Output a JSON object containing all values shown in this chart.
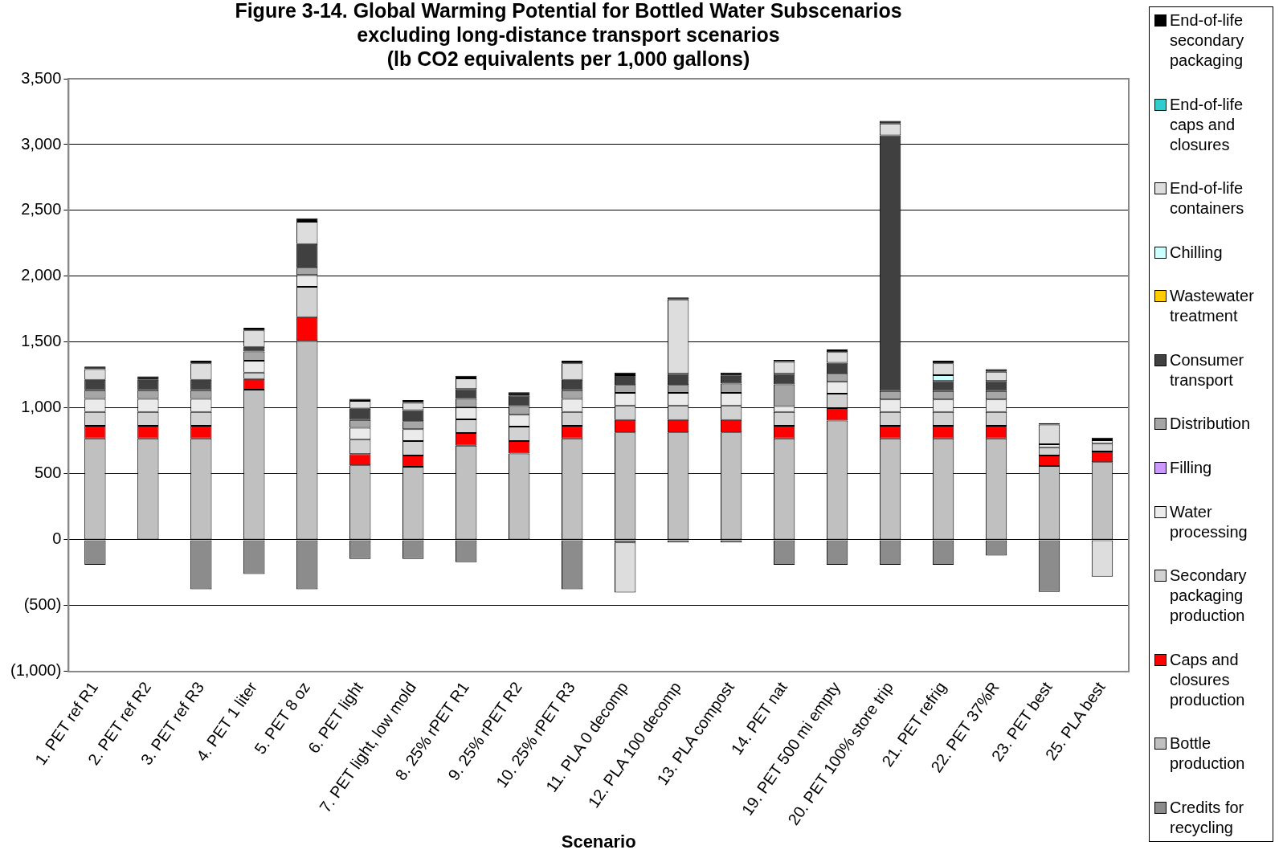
{
  "chart_data": {
    "type": "bar",
    "stacked": true,
    "title": "Figure 3-14. Global Warming Potential for Bottled Water Subscenarios\nexcluding long-distance transport scenarios\n(lb CO2 equivalents per 1,000 gallons)",
    "xlabel": "Scenario",
    "categories": [
      "1. PET ref R1",
      "2. PET ref R2",
      "3. PET ref R3",
      "4. PET 1 liter",
      "5. PET 8 oz",
      "6. PET light",
      "7. PET light, low mold",
      "8. 25% rPET R1",
      "9. 25% rPET R2",
      "10. 25% rPET R3",
      "11. PLA 0 decomp",
      "12. PLA 100 decomp",
      "13. PLA compost",
      "14. PET nat",
      "19. PET 500 mi empty",
      "20. PET 100% store trip",
      "21. PET refrig",
      "22. PET 37%R",
      "23. PET best",
      "25. PLA best"
    ],
    "series": [
      {
        "name": "Credits for recycling",
        "color": "#8c8c8c",
        "values": [
          -190,
          null,
          -375,
          -260,
          -375,
          -145,
          -145,
          -170,
          null,
          -375,
          -20,
          -20,
          -20,
          -190,
          -190,
          -190,
          -190,
          -120,
          -395,
          null
        ]
      },
      {
        "name": "Bottle production",
        "color": "#c0c0c0",
        "values": [
          770,
          770,
          770,
          1140,
          1510,
          565,
          555,
          715,
          655,
          770,
          815,
          815,
          815,
          770,
          905,
          770,
          770,
          770,
          560,
          590
        ]
      },
      {
        "name": "Caps and closures production",
        "color": "#ff0000",
        "values": [
          95,
          95,
          95,
          80,
          180,
          85,
          85,
          95,
          95,
          95,
          95,
          95,
          95,
          95,
          95,
          95,
          95,
          95,
          80,
          80
        ]
      },
      {
        "name": "Secondary packaging production",
        "color": "#d2d2d2",
        "values": [
          105,
          105,
          105,
          50,
          230,
          110,
          110,
          105,
          110,
          105,
          110,
          110,
          110,
          105,
          110,
          105,
          105,
          105,
          60,
          60
        ]
      },
      {
        "name": "Water processing",
        "color": "#ebebeb",
        "values": [
          100,
          100,
          100,
          90,
          90,
          90,
          90,
          90,
          90,
          100,
          95,
          95,
          95,
          45,
          90,
          95,
          95,
          95,
          25,
          25
        ]
      },
      {
        "name": "Filling",
        "color": "#cc99ff",
        "values": [
          null,
          null,
          null,
          null,
          null,
          null,
          null,
          null,
          null,
          null,
          null,
          null,
          null,
          null,
          null,
          null,
          null,
          null,
          null,
          null
        ]
      },
      {
        "name": "Distribution",
        "color": "#a6a6a6",
        "values": [
          65,
          65,
          65,
          70,
          55,
          60,
          60,
          65,
          65,
          65,
          60,
          60,
          70,
          165,
          60,
          65,
          65,
          65,
          null,
          null
        ]
      },
      {
        "name": "Consumer transport",
        "color": "#404040",
        "values": [
          80,
          80,
          80,
          35,
          180,
          85,
          85,
          75,
          80,
          80,
          75,
          85,
          60,
          80,
          85,
          1940,
          75,
          75,
          null,
          null
        ]
      },
      {
        "name": "Wastewater treatment",
        "color": "#ffcc00",
        "values": [
          null,
          null,
          null,
          null,
          null,
          null,
          null,
          null,
          null,
          null,
          null,
          null,
          null,
          null,
          null,
          null,
          null,
          null,
          null,
          null
        ]
      },
      {
        "name": "Chilling",
        "color": "#ccffff",
        "values": [
          null,
          null,
          null,
          null,
          null,
          null,
          null,
          null,
          null,
          null,
          null,
          null,
          null,
          null,
          null,
          null,
          45,
          null,
          null,
          null
        ]
      },
      {
        "name": "End-of-life containers",
        "color": "#dddddd",
        "values": [
          80,
          null,
          125,
          125,
          170,
          60,
          55,
          80,
          null,
          125,
          -380,
          565,
          null,
          90,
          80,
          90,
          90,
          70,
          150,
          -280
        ]
      },
      {
        "name": "End-of-life caps and closures",
        "color": "#33cccc",
        "values": [
          null,
          null,
          null,
          null,
          null,
          null,
          null,
          null,
          null,
          null,
          null,
          null,
          null,
          null,
          null,
          null,
          null,
          null,
          null,
          null
        ]
      },
      {
        "name": "End-of-life secondary packaging",
        "color": "#000000",
        "values": [
          20,
          25,
          20,
          20,
          25,
          15,
          20,
          20,
          25,
          20,
          20,
          15,
          25,
          15,
          20,
          20,
          20,
          20,
          10,
          20
        ]
      }
    ],
    "ylim": [
      -1000,
      3500
    ],
    "yticks": [
      {
        "value": -1000,
        "label": "(1,000)"
      },
      {
        "value": -500,
        "label": "(500)"
      },
      0,
      {
        "value": 500,
        "label": "500"
      },
      {
        "value": 1000,
        "label": "1,000"
      },
      {
        "value": 1500,
        "label": "1,500"
      },
      {
        "value": 2000,
        "label": "2,000"
      },
      {
        "value": 2500,
        "label": "2,500"
      },
      {
        "value": 3000,
        "label": "3,000"
      },
      {
        "value": 3500,
        "label": "3,500"
      }
    ],
    "grid": "y",
    "legend": "right"
  }
}
